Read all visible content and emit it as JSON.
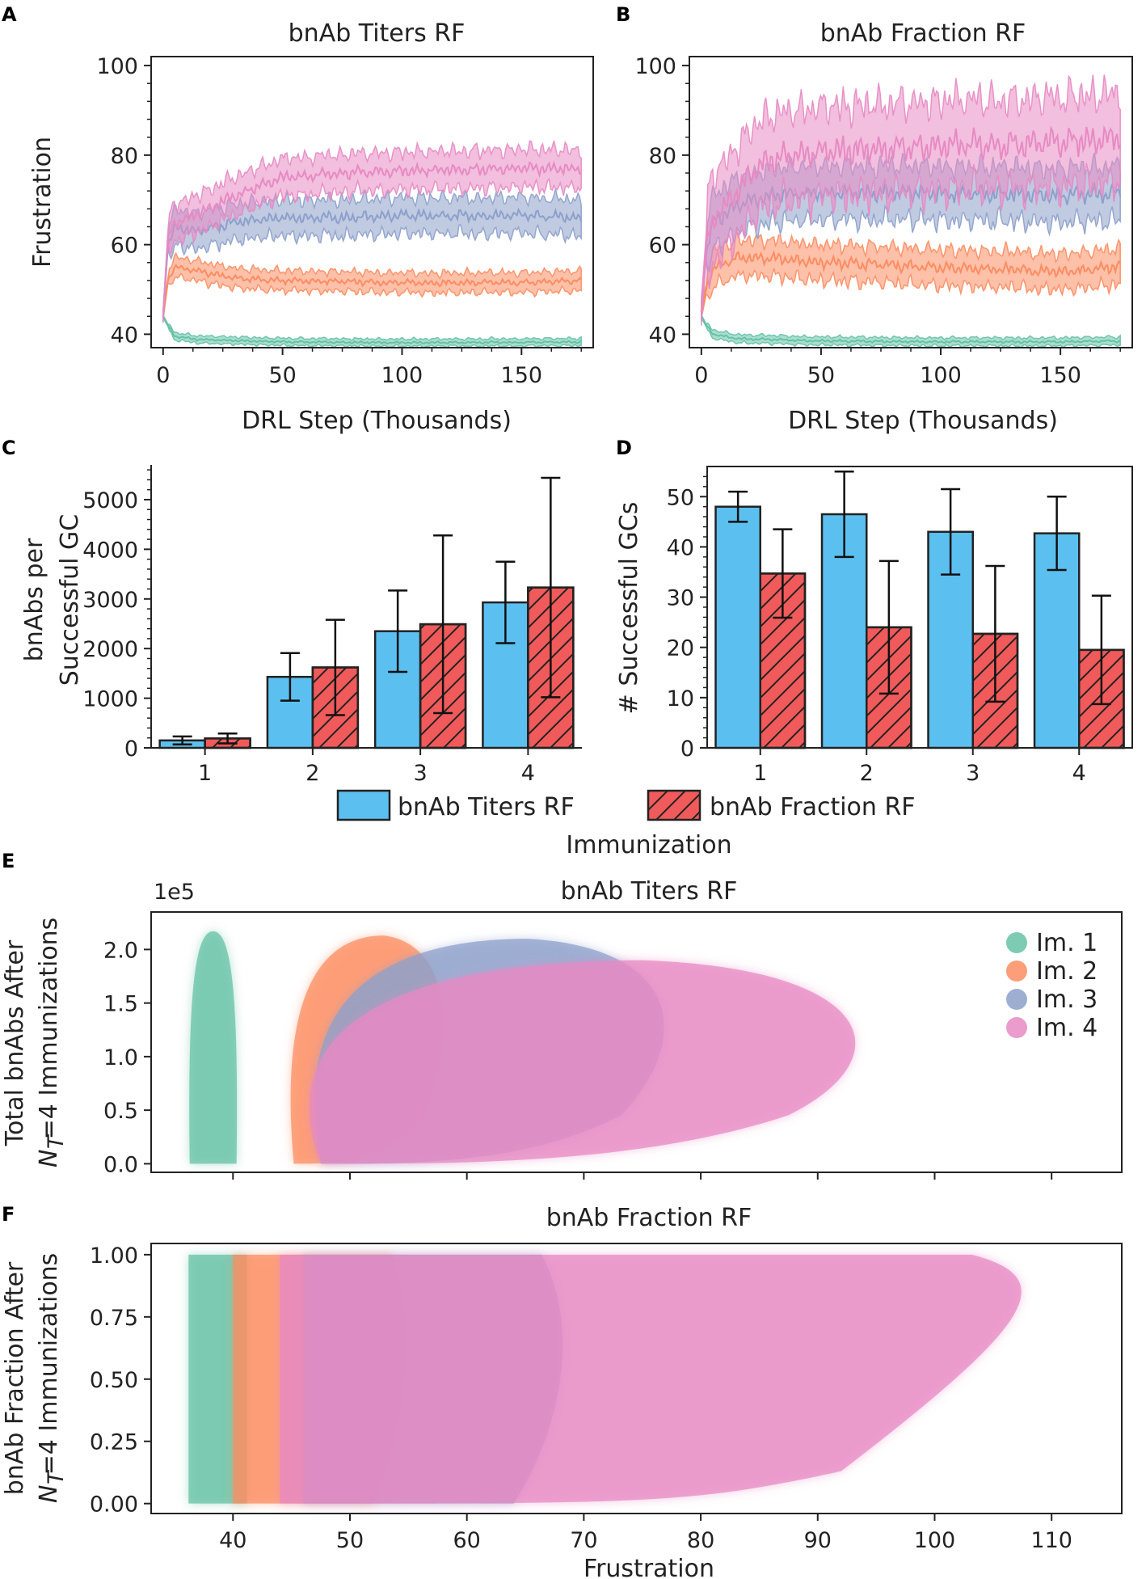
{
  "colors": {
    "im1": "#66c2a5",
    "im2": "#fc8d62",
    "im3": "#8da0cb",
    "im4": "#e78ac3",
    "titers_bar": "#5bc0f0",
    "fraction_bar": "#f05a5a"
  },
  "panel_labels": [
    "A",
    "B",
    "C",
    "D",
    "E",
    "F"
  ],
  "chart_data": [
    {
      "id": "A",
      "type": "line",
      "title": "bnAb Titers RF",
      "xlabel": "DRL Step (Thousands)",
      "ylabel": "Frustration",
      "xlim": [
        -5,
        180
      ],
      "ylim": [
        37,
        102
      ],
      "xticks": [
        0,
        50,
        100,
        150
      ],
      "yticks": [
        40,
        60,
        80,
        100
      ],
      "series": [
        {
          "name": "Im. 1",
          "x": [
            0,
            2,
            5,
            15,
            50,
            100,
            150,
            175
          ],
          "mean": [
            44,
            42,
            39.5,
            38.8,
            38.3,
            38.1,
            38.2,
            38.3
          ],
          "band": 0.8
        },
        {
          "name": "Im. 2",
          "x": [
            0,
            2,
            5,
            15,
            30,
            50,
            100,
            150,
            175
          ],
          "mean": [
            44,
            52,
            55,
            54,
            52.5,
            52,
            51.5,
            51.5,
            52
          ],
          "band": 2.2
        },
        {
          "name": "Im. 3",
          "x": [
            0,
            2,
            5,
            15,
            30,
            50,
            75,
            100,
            150,
            175
          ],
          "mean": [
            44,
            60,
            64,
            63,
            65,
            66,
            66,
            66.5,
            66.5,
            66
          ],
          "band": 4
        },
        {
          "name": "Im. 4",
          "x": [
            0,
            2,
            5,
            15,
            30,
            50,
            75,
            100,
            150,
            175
          ],
          "mean": [
            44,
            62,
            65,
            67,
            71,
            75,
            76,
            76.5,
            77,
            77
          ],
          "band": 4.2
        }
      ]
    },
    {
      "id": "B",
      "type": "line",
      "title": "bnAb Fraction RF",
      "xlabel": "DRL Step (Thousands)",
      "ylabel": "",
      "xlim": [
        -5,
        180
      ],
      "ylim": [
        37,
        102
      ],
      "xticks": [
        0,
        50,
        100,
        150
      ],
      "yticks": [
        40,
        60,
        80,
        100
      ],
      "series": [
        {
          "name": "Im. 1",
          "x": [
            0,
            2,
            5,
            15,
            50,
            100,
            150,
            175
          ],
          "mean": [
            44,
            42,
            40,
            39,
            38.5,
            38.3,
            38.3,
            38.5
          ],
          "band": 0.9
        },
        {
          "name": "Im. 2",
          "x": [
            0,
            2,
            5,
            15,
            30,
            50,
            100,
            150,
            175
          ],
          "mean": [
            45,
            50,
            55,
            57,
            57,
            56,
            55,
            54,
            55
          ],
          "band": 4
        },
        {
          "name": "Im. 3",
          "x": [
            0,
            2,
            5,
            15,
            30,
            50,
            100,
            150,
            175
          ],
          "mean": [
            45,
            58,
            65,
            69,
            71,
            71.5,
            71.5,
            71,
            71.5
          ],
          "band": 6
        },
        {
          "name": "Im. 4",
          "x": [
            0,
            2,
            5,
            15,
            25,
            40,
            60,
            100,
            150,
            175
          ],
          "mean": [
            45,
            60,
            66,
            72,
            78,
            80,
            81,
            82,
            83,
            84
          ],
          "band": 10
        }
      ]
    },
    {
      "id": "C",
      "type": "bar",
      "ylabel": "bnAbs per Successful GC",
      "categories": [
        "1",
        "2",
        "3",
        "4"
      ],
      "ylim": [
        0,
        5700
      ],
      "yticks": [
        0,
        1000,
        2000,
        3000,
        4000,
        5000
      ],
      "series": [
        {
          "name": "bnAb Titers RF",
          "values": [
            150,
            1430,
            2350,
            2930
          ],
          "err": [
            80,
            480,
            820,
            820
          ]
        },
        {
          "name": "bnAb Fraction RF",
          "values": [
            190,
            1620,
            2490,
            3230
          ],
          "err": [
            100,
            960,
            1790,
            2210
          ]
        }
      ]
    },
    {
      "id": "D",
      "type": "bar",
      "ylabel": "# Successful GCs",
      "categories": [
        "1",
        "2",
        "3",
        "4"
      ],
      "ylim": [
        0,
        56
      ],
      "yticks": [
        0,
        10,
        20,
        30,
        40,
        50
      ],
      "series": [
        {
          "name": "bnAb Titers RF",
          "values": [
            48,
            46.5,
            43,
            42.7
          ],
          "err": [
            3,
            8.5,
            8.5,
            7.3
          ]
        },
        {
          "name": "bnAb Fraction RF",
          "values": [
            34.7,
            24,
            22.7,
            19.5
          ],
          "err": [
            8.8,
            13.2,
            13.5,
            10.8
          ]
        }
      ]
    },
    {
      "id": "E",
      "type": "scatter",
      "title": "bnAb Titers RF",
      "ylabel_lines": [
        "Total bnAbs After",
        "=4 Immunizations"
      ],
      "ylabel_var": "N",
      "ylabel_sub": "T",
      "offset_label": "1e5",
      "xlim": [
        33,
        116
      ],
      "ylim": [
        -0.08,
        2.35
      ],
      "xticks": [
        40,
        50,
        60,
        70,
        80,
        90,
        100,
        110
      ],
      "yticks": [
        0.0,
        0.5,
        1.0,
        1.5,
        2.0
      ],
      "ytick_labels": [
        "0.0",
        "0.5",
        "1.0",
        "1.5",
        "2.0"
      ],
      "legend": [
        "Im. 1",
        "Im. 2",
        "Im. 3",
        "Im. 4"
      ],
      "regions": [
        {
          "series": "Im. 1",
          "x_center": 38.3,
          "x_halfwidth": 2.0,
          "y_min": 0.0,
          "y_max": 2.17
        },
        {
          "series": "Im. 2",
          "x_center": 51.5,
          "x_halfwidth": 7.0,
          "y_min": 0.0,
          "y_max": 2.13
        },
        {
          "series": "Im. 3",
          "x_center": 62,
          "x_halfwidth": 16,
          "y_min": 0.0,
          "y_max": 2.1
        },
        {
          "series": "Im. 4",
          "x_center": 70,
          "x_halfwidth": 25,
          "y_min": 0.0,
          "y_max": 1.9
        }
      ]
    },
    {
      "id": "F",
      "type": "scatter",
      "title": "bnAb Fraction RF",
      "ylabel_lines": [
        "bnAb Fraction After",
        "=4 Immunizations"
      ],
      "ylabel_var": "N",
      "ylabel_sub": "T",
      "xlabel": "Frustration",
      "xlim": [
        33,
        116
      ],
      "ylim": [
        -0.04,
        1.045
      ],
      "xticks": [
        40,
        50,
        60,
        70,
        80,
        90,
        100,
        110
      ],
      "yticks": [
        0.0,
        0.25,
        0.5,
        0.75,
        1.0
      ],
      "ytick_labels": [
        "0.00",
        "0.25",
        "0.50",
        "0.75",
        "1.00"
      ],
      "regions": [
        {
          "series": "Im. 1",
          "x_center": 38.7,
          "x_halfwidth": 2.5,
          "y_min": 0.0,
          "y_max": 1.0
        },
        {
          "series": "Im. 2",
          "x_center": 48,
          "x_halfwidth": 8,
          "y_min": 0.0,
          "y_max": 1.0
        },
        {
          "series": "Im. 3",
          "x_center": 58,
          "x_halfwidth": 12,
          "y_min": 0.0,
          "y_max": 1.0
        },
        {
          "series": "Im. 4",
          "x_center": 76,
          "x_halfwidth": 32,
          "y_min": 0.0,
          "y_max": 1.0
        }
      ]
    }
  ],
  "bar_legend": [
    "bnAb Titers RF",
    "bnAb Fraction RF"
  ],
  "bar_xlabel": "Immunization"
}
